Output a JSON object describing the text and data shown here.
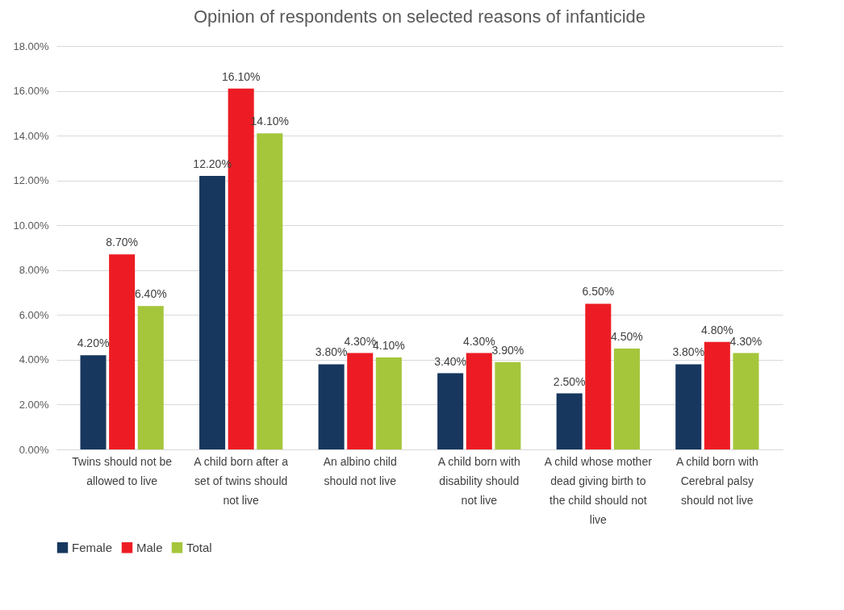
{
  "chart_data": {
    "type": "bar",
    "title": "Opinion of respondents on selected reasons of infanticide",
    "categories": [
      "Twins should not be allowed to live",
      "A child born after a set of twins should not live",
      "An albino child should not live",
      "A child born with disability should not live",
      "A child whose mother dead giving birth to the child should not live",
      "A child born with Cerebral palsy should not live"
    ],
    "series": [
      {
        "name": "Female",
        "color": "#17375e",
        "values": [
          4.2,
          12.2,
          3.8,
          3.4,
          2.5,
          3.8
        ],
        "value_labels": [
          "4.20%",
          "12.20%",
          "3.80%",
          "3.40%",
          "2.50%",
          "3.80%"
        ]
      },
      {
        "name": "Male",
        "color": "#ed1c24",
        "values": [
          8.7,
          16.1,
          4.3,
          4.3,
          6.5,
          4.8
        ],
        "value_labels": [
          "8.70%",
          "16.10%",
          "4.30%",
          "4.30%",
          "6.50%",
          "4.80%"
        ]
      },
      {
        "name": "Total",
        "color": "#a5c63b",
        "values": [
          6.4,
          14.1,
          4.1,
          3.9,
          4.5,
          4.3
        ],
        "value_labels": [
          "6.40%",
          "14.10%",
          "4.10%",
          "3.90%",
          "4.50%",
          "4.30%"
        ]
      }
    ],
    "ylim": [
      0,
      18
    ],
    "yticks": [
      {
        "value": 0,
        "label": "0.00%"
      },
      {
        "value": 2,
        "label": "2.00%"
      },
      {
        "value": 4,
        "label": "4.00%"
      },
      {
        "value": 6,
        "label": "6.00%"
      },
      {
        "value": 8,
        "label": "8.00%"
      },
      {
        "value": 10,
        "label": "10.00%"
      },
      {
        "value": 12,
        "label": "12.00%"
      },
      {
        "value": 14,
        "label": "14.00%"
      },
      {
        "value": 16,
        "label": "16.00%"
      },
      {
        "value": 18,
        "label": "18.00%"
      }
    ],
    "grid": "y",
    "legend": "bottom"
  }
}
